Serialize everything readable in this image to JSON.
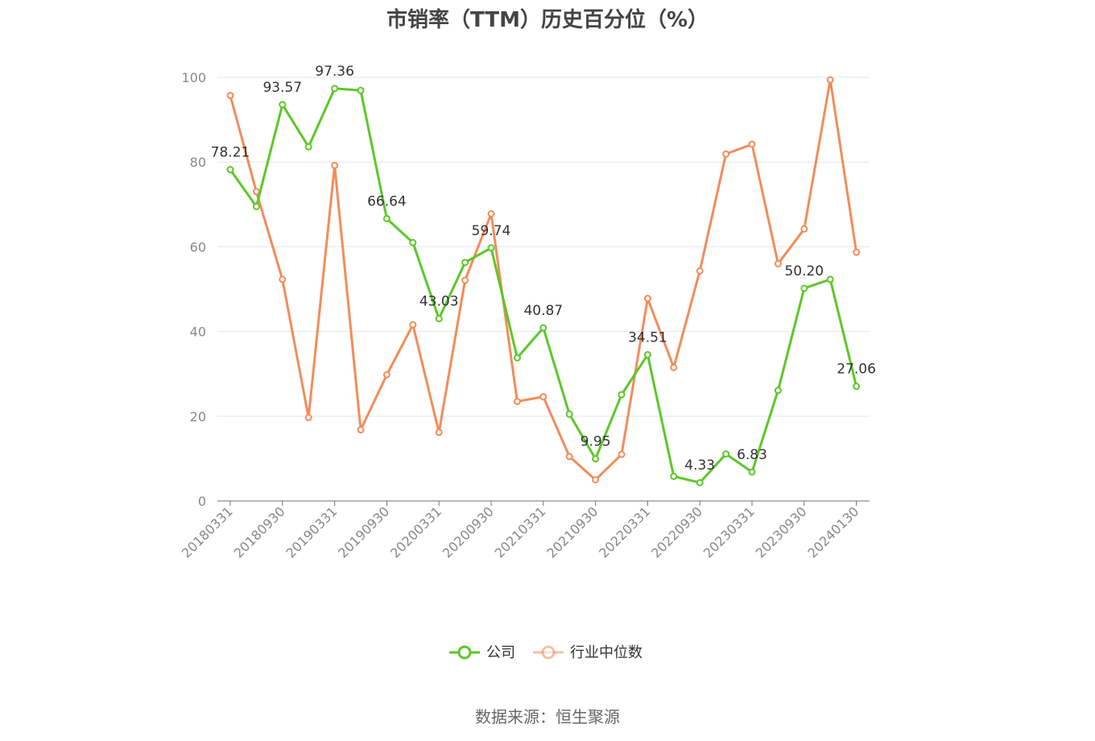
{
  "title": "市销率（TTM）历史百分位（%）",
  "source": "数据来源：恒生聚源",
  "colors": {
    "company": "#5cc72a",
    "industry": "#f28c5a",
    "grid": "#e0e6f1",
    "axis": "#6e7079"
  },
  "chart_data": {
    "type": "line",
    "title": "市销率（TTM）历史百分位（%）",
    "ylim": [
      0,
      100
    ],
    "yticks": [
      0,
      20,
      40,
      60,
      80,
      100
    ],
    "grid": true,
    "legend_position": "bottom",
    "x": [
      "20180331",
      "20180630",
      "20180930",
      "20181231",
      "20190331",
      "20190630",
      "20190930",
      "20191231",
      "20200331",
      "20200630",
      "20200930",
      "20201231",
      "20210331",
      "20210630",
      "20210930",
      "20211231",
      "20220331",
      "20220630",
      "20220930",
      "20221231",
      "20230331",
      "20230630",
      "20230930",
      "20231231",
      "20240130"
    ],
    "xtick_labels": [
      "20180331",
      "20180930",
      "20190331",
      "20190930",
      "20200331",
      "20200930",
      "20210331",
      "20210930",
      "20220331",
      "20220930",
      "20230331",
      "20230930",
      "20240130"
    ],
    "series": [
      {
        "name": "公司",
        "color": "#5cc72a",
        "values": [
          78.21,
          69.5,
          93.57,
          83.6,
          97.36,
          96.9,
          66.64,
          61.0,
          43.03,
          56.3,
          59.74,
          33.8,
          40.87,
          20.5,
          9.95,
          25.1,
          34.51,
          5.8,
          4.33,
          11.1,
          6.83,
          26.1,
          50.2,
          52.3,
          27.06
        ],
        "labels": [
          "78.21",
          "",
          "93.57",
          "",
          "97.36",
          "",
          "66.64",
          "",
          "43.03",
          "",
          "59.74",
          "",
          "40.87",
          "",
          "9.95",
          "",
          "34.51",
          "",
          "4.33",
          "",
          "6.83",
          "",
          "50.20",
          "",
          "27.06"
        ]
      },
      {
        "name": "行业中位数",
        "color": "#f28c5a",
        "values": [
          95.7,
          73.0,
          52.3,
          19.7,
          79.2,
          16.8,
          29.8,
          41.6,
          16.2,
          52.1,
          67.8,
          23.5,
          24.6,
          10.5,
          5.0,
          11.0,
          47.8,
          31.5,
          54.3,
          81.9,
          84.2,
          56.0,
          64.2,
          99.4,
          58.7
        ],
        "labels": []
      }
    ]
  }
}
